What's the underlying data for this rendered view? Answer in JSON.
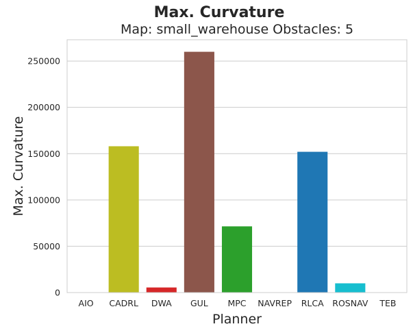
{
  "chart_data": {
    "type": "bar",
    "suptitle": "Max. Curvature",
    "title": "Map: small_warehouse Obstacles: 5",
    "xlabel": "Planner",
    "ylabel": "Max. Curvature",
    "categories": [
      "AIO",
      "CADRL",
      "DWA",
      "GUL",
      "MPC",
      "NAVREP",
      "RLCA",
      "ROSNAV",
      "TEB"
    ],
    "values": [
      0,
      158000,
      5500,
      260000,
      71500,
      0,
      152000,
      10000,
      0
    ],
    "colors": [
      "#7f7f7f",
      "#bcbd22",
      "#d62728",
      "#8c564b",
      "#2ca02c",
      "#9467bd",
      "#1f77b4",
      "#17becf",
      "#e377c2"
    ],
    "ylim": [
      0,
      273000
    ],
    "yticks": [
      0,
      50000,
      100000,
      150000,
      200000,
      250000
    ],
    "ytick_labels": [
      "0",
      "50000",
      "100000",
      "150000",
      "200000",
      "250000"
    ],
    "grid": true,
    "legend": "none"
  }
}
